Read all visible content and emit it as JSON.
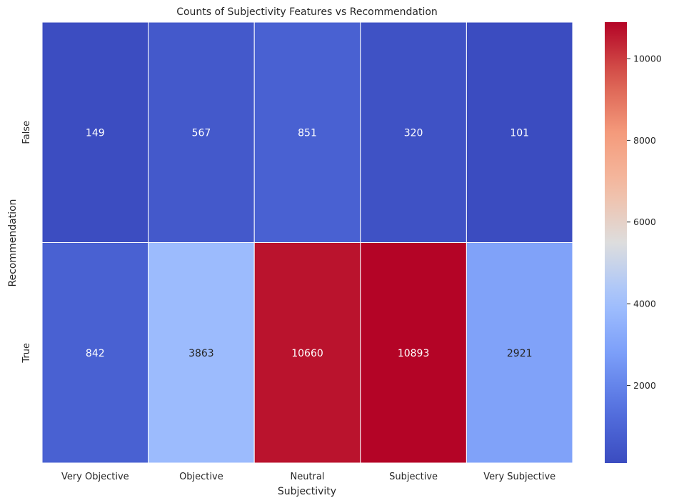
{
  "chart_data": {
    "type": "heatmap",
    "title": "Counts of Subjectivity Features vs Recommendation",
    "xlabel": "Subjectivity",
    "ylabel": "Recommendation",
    "x_categories": [
      "Very Objective",
      "Objective",
      "Neutral",
      "Subjective",
      "Very Subjective"
    ],
    "y_categories": [
      "False",
      "True"
    ],
    "values": [
      [
        149,
        567,
        851,
        320,
        101
      ],
      [
        842,
        3863,
        10660,
        10893,
        2921
      ]
    ],
    "colormap": "coolwarm",
    "vmin": 101,
    "vmax": 10893,
    "colorbar_ticks": [
      "2000",
      "4000",
      "6000",
      "8000",
      "10000"
    ],
    "annotated": true,
    "cell_border_color": "#ffffff"
  }
}
